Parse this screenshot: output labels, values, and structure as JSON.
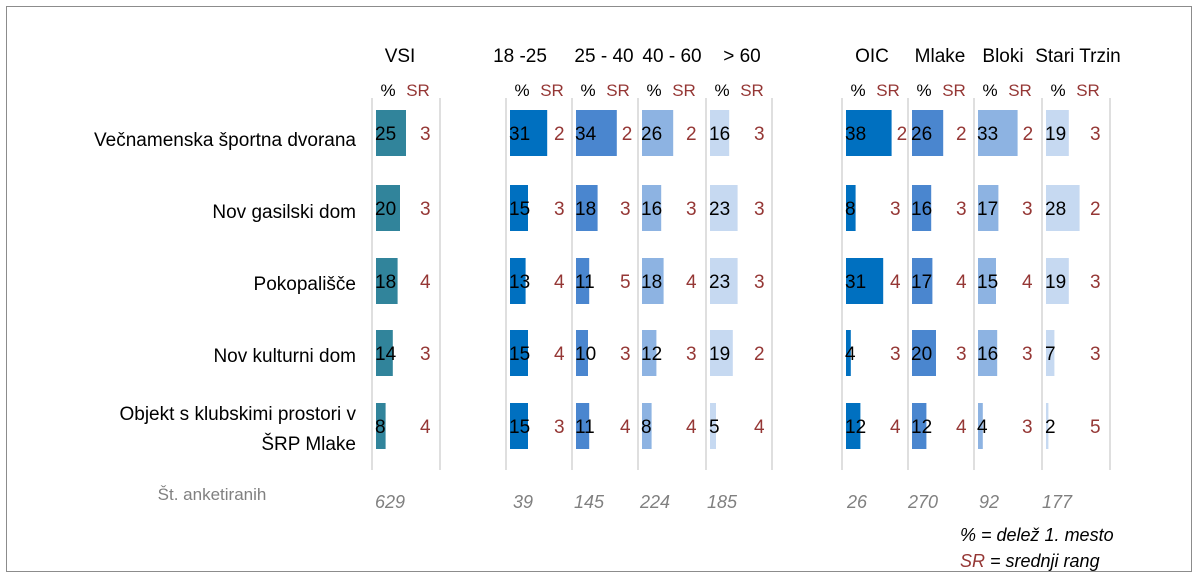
{
  "chart_data": {
    "type": "bar",
    "sub_header": {
      "pct": "%",
      "sr": "SR"
    },
    "categories": [
      "Večnamenska športna dvorana",
      "Nov gasilski dom",
      "Pokopališče",
      "Nov kulturni dom",
      "Objekt s klubskimi prostori v ŠRP Mlake"
    ],
    "groups": [
      {
        "name": "VSI",
        "color": "#31849b",
        "n": "629",
        "pct": [
          25,
          20,
          18,
          14,
          8
        ],
        "sr": [
          3,
          3,
          4,
          3,
          4
        ]
      },
      {
        "name": "18 -25",
        "color": "#0070c0",
        "n": "39",
        "pct": [
          31,
          15,
          13,
          15,
          15
        ],
        "sr": [
          2,
          3,
          4,
          4,
          3
        ]
      },
      {
        "name": "25 - 40",
        "color": "#4a86cf",
        "n": "145",
        "pct": [
          34,
          18,
          11,
          10,
          11
        ],
        "sr": [
          2,
          3,
          5,
          3,
          4
        ]
      },
      {
        "name": "40 - 60",
        "color": "#8db3e2",
        "n": "224",
        "pct": [
          26,
          16,
          18,
          12,
          8
        ],
        "sr": [
          2,
          3,
          4,
          3,
          4
        ]
      },
      {
        "name": "> 60",
        "color": "#c6d9f1",
        "n": "185",
        "pct": [
          16,
          23,
          23,
          19,
          5
        ],
        "sr": [
          3,
          3,
          3,
          2,
          4
        ]
      },
      {
        "name": "OIC",
        "color": "#0070c0",
        "n": "26",
        "pct": [
          38,
          8,
          31,
          4,
          12
        ],
        "sr": [
          2,
          3,
          4,
          3,
          4
        ]
      },
      {
        "name": "Mlake",
        "color": "#4a86cf",
        "n": "270",
        "pct": [
          26,
          16,
          17,
          20,
          12
        ],
        "sr": [
          2,
          3,
          4,
          3,
          4
        ]
      },
      {
        "name": "Bloki",
        "color": "#8db3e2",
        "n": "92",
        "pct": [
          33,
          17,
          15,
          16,
          4
        ],
        "sr": [
          2,
          3,
          4,
          3,
          3
        ]
      },
      {
        "name": "Stari Trzin",
        "color": "#c6d9f1",
        "n": "177",
        "pct": [
          19,
          28,
          19,
          7,
          2
        ],
        "sr": [
          3,
          2,
          3,
          3,
          5
        ]
      }
    ],
    "n_label": "Št. anketiranih",
    "note_line1": "% = delež 1. mesto",
    "note_sr": "SR",
    "note_line2": " = srednji rang",
    "colors": {
      "sr_text": "#953735",
      "n_text": "#808080",
      "grid": "#bfbfbf"
    }
  }
}
